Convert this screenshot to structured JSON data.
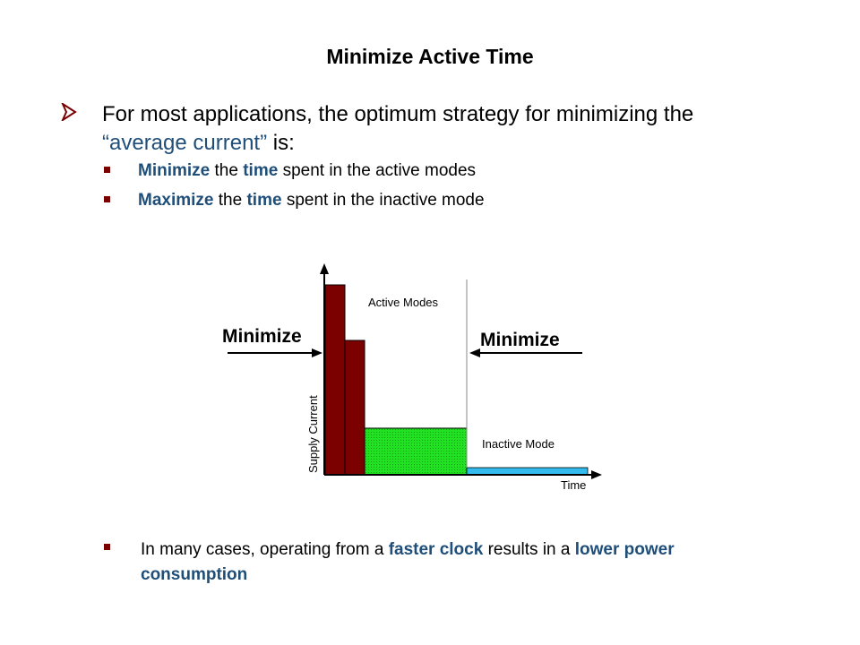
{
  "title": "Minimize Active Time",
  "main_bullet": {
    "text_part1": "For most applications, the optimum strategy for minimizing the ",
    "highlight": "“average current”",
    "text_part2": " is:"
  },
  "sub_bullets": [
    {
      "b1": "Minimize",
      "t1": " the ",
      "b2": "time",
      "t2": " spent in the active modes"
    },
    {
      "b1": "Maximize",
      "t1": " the ",
      "b2": "time",
      "t2": " spent in the inactive mode"
    }
  ],
  "diagram": {
    "active_label": "Active Modes",
    "inactive_label": "Inactive Mode",
    "minimize_left": "Minimize",
    "minimize_right": "Minimize",
    "y_axis_label": "Supply Current",
    "x_axis_label": "Time",
    "colors": {
      "active_bar": "#7b0000",
      "medium_bar": "#22e022",
      "inactive_bar": "#33bbee"
    }
  },
  "final_bullet": {
    "t1": "In many cases, operating from a ",
    "b1": "faster clock",
    "t2": " results in a ",
    "b2": "lower power consumption"
  }
}
